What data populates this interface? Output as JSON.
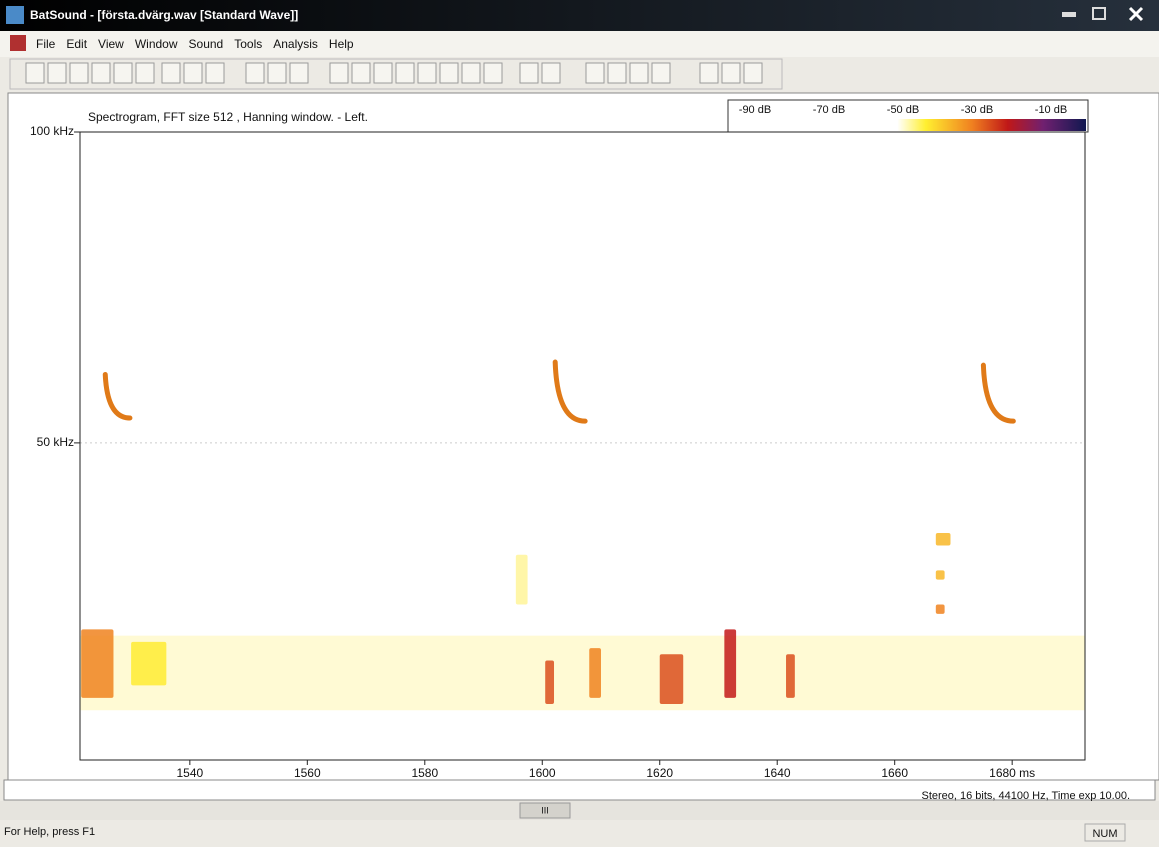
{
  "window": {
    "title": "BatSound - [första.dvärg.wav [Standard Wave]]",
    "menu": [
      "File",
      "Edit",
      "View",
      "Window",
      "Sound",
      "Tools",
      "Analysis",
      "Help"
    ]
  },
  "chart_data": {
    "type": "spectrogram",
    "title": "Spectrogram, FFT size 512 , Hanning window. - Left.",
    "xlim": [
      1521.3,
      1692.4
    ],
    "xticks": [
      1540,
      1560,
      1580,
      1600,
      1620,
      1640,
      1660,
      {
        "value": 1680,
        "label": "1680 ms"
      }
    ],
    "ylim": [
      -1,
      100
    ],
    "yticks": [
      {
        "value": 100,
        "label": "100 kHz"
      },
      {
        "value": 50,
        "label": "50 kHz"
      }
    ],
    "color_scale": [
      {
        "value": -90,
        "label": "-90 dB"
      },
      {
        "value": -70,
        "label": "-70 dB"
      },
      {
        "value": -50,
        "label": "-50 dB"
      },
      {
        "value": -30,
        "label": "-30 dB"
      },
      {
        "value": -10,
        "label": "-10 dB"
      }
    ],
    "calls": [
      {
        "t": [
          1525.6,
          1529.8
        ],
        "f": [
          61,
          54
        ]
      },
      {
        "t": [
          1602.2,
          1607.3
        ],
        "f": [
          63,
          53.5
        ]
      },
      {
        "t": [
          1675.1,
          1680.2
        ],
        "f": [
          62.5,
          53.5
        ]
      }
    ],
    "events": [
      {
        "t": [
          1521.5,
          1527
        ],
        "f": [
          9,
          20
        ],
        "level": -40
      },
      {
        "t": [
          1530,
          1536
        ],
        "f": [
          11,
          18
        ],
        "level": -50
      },
      {
        "t": [
          1595.5,
          1597.5
        ],
        "f": [
          24,
          32
        ],
        "level": -55
      },
      {
        "t": [
          1600.5,
          1602
        ],
        "f": [
          8,
          15
        ],
        "level": -35
      },
      {
        "t": [
          1608,
          1610
        ],
        "f": [
          9,
          17
        ],
        "level": -40
      },
      {
        "t": [
          1620,
          1624
        ],
        "f": [
          8,
          16
        ],
        "level": -35
      },
      {
        "t": [
          1631,
          1633
        ],
        "f": [
          9,
          20
        ],
        "level": -30
      },
      {
        "t": [
          1641.5,
          1643
        ],
        "f": [
          9,
          16
        ],
        "level": -35
      },
      {
        "t": [
          1667,
          1669.5
        ],
        "f": [
          33.5,
          35.5
        ],
        "level": -45
      },
      {
        "t": [
          1667,
          1668.5
        ],
        "f": [
          28,
          29.5
        ],
        "level": -45
      },
      {
        "t": [
          1667,
          1668.5
        ],
        "f": [
          22.5,
          24
        ],
        "level": -40
      }
    ],
    "noise_band": {
      "t": [
        1521.3,
        1692.4
      ],
      "f": [
        7,
        19
      ],
      "level": -55
    }
  },
  "status": {
    "info": "Stereo, 16 bits, 44100 Hz, Time exp 10.00.",
    "help": "For Help, press F1",
    "num": "NUM",
    "scroll": "III"
  }
}
